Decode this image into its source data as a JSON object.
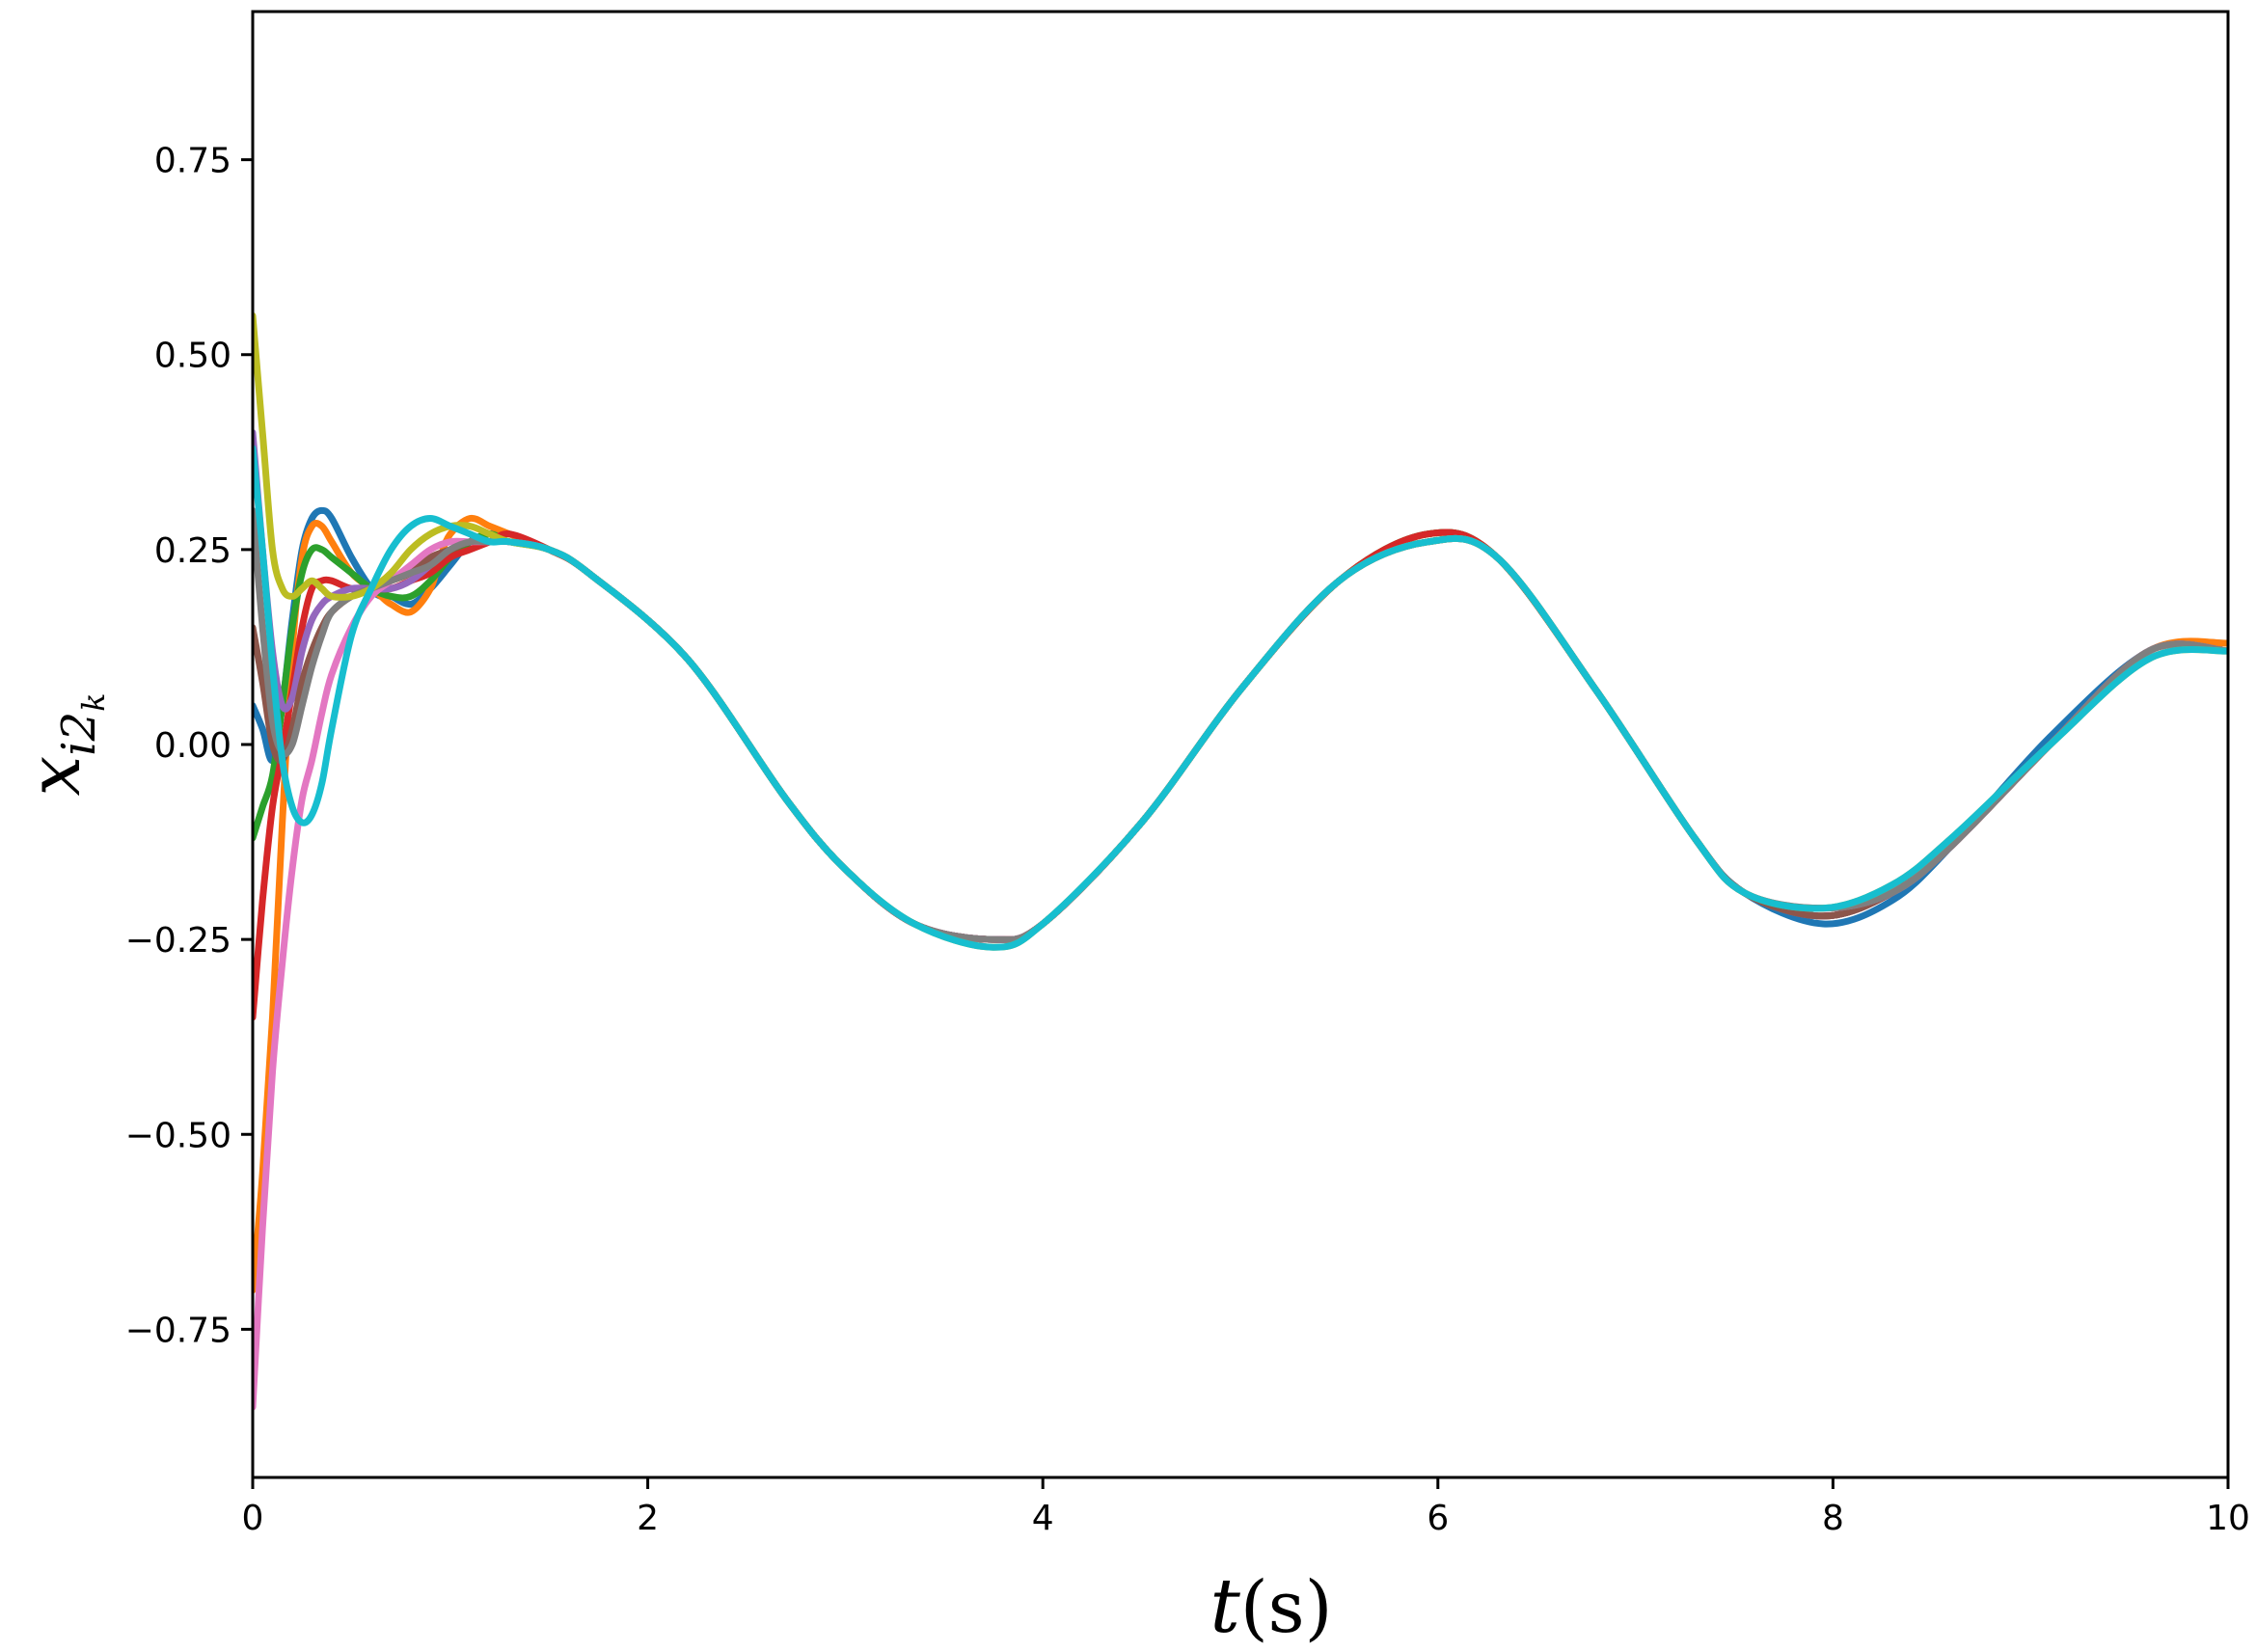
{
  "chart_data": {
    "type": "line",
    "title": "",
    "xlabel": {
      "var": "t",
      "unit": "(s)"
    },
    "ylabel": {
      "base": "x",
      "subscript": "i2",
      "subsubscript": "k"
    },
    "xlim": [
      0,
      10
    ],
    "ylim": [
      -0.94,
      0.94
    ],
    "x_ticks": [
      0,
      2,
      4,
      6,
      8,
      10
    ],
    "y_ticks": [
      -0.75,
      -0.5,
      -0.25,
      0.0,
      0.25,
      0.5,
      0.75
    ],
    "x_tick_labels": [
      "0",
      "2",
      "4",
      "6",
      "8",
      "10"
    ],
    "y_tick_labels": [
      "−0.75",
      "−0.50",
      "−0.25",
      "0.00",
      "0.25",
      "0.50",
      "0.75"
    ],
    "grid": false,
    "legend": "none",
    "colors": [
      "#1f77b4",
      "#ff7f0e",
      "#2ca02c",
      "#d62728",
      "#9467bd",
      "#8c564b",
      "#e377c2",
      "#7f7f7f",
      "#bcbd22",
      "#17becf"
    ],
    "series": [
      {
        "x": [
          0,
          0.05,
          0.1,
          0.15,
          0.2,
          0.25,
          0.3,
          0.35,
          0.4,
          0.5,
          0.6,
          0.65,
          0.7,
          0.8,
          0.9,
          1.0,
          1.1,
          1.2,
          1.3,
          1.5,
          1.7,
          2.2,
          2.7,
          3.0,
          3.35,
          3.75,
          4.0,
          4.5,
          5.0,
          5.5,
          5.95,
          6.3,
          6.8,
          7.3,
          7.55,
          7.95,
          8.3,
          8.6,
          9.1,
          9.6,
          10.0
        ],
        "y": [
          0.05,
          0.02,
          -0.02,
          0.05,
          0.16,
          0.25,
          0.29,
          0.3,
          0.29,
          0.24,
          0.2,
          0.19,
          0.19,
          0.18,
          0.2,
          0.23,
          0.26,
          0.27,
          0.27,
          0.25,
          0.22,
          0.11,
          -0.07,
          -0.16,
          -0.23,
          -0.25,
          -0.23,
          -0.1,
          0.07,
          0.21,
          0.27,
          0.24,
          0.07,
          -0.12,
          -0.19,
          -0.23,
          -0.2,
          -0.13,
          0.01,
          0.12,
          0.13
        ]
      },
      {
        "x": [
          0,
          0.05,
          0.1,
          0.15,
          0.2,
          0.25,
          0.3,
          0.35,
          0.4,
          0.5,
          0.6,
          0.65,
          0.7,
          0.8,
          0.9,
          0.95,
          1.0,
          1.1,
          1.2,
          1.3,
          1.5,
          1.7,
          2.2,
          2.7,
          3.0,
          3.35,
          3.75,
          4.0,
          4.5,
          5.0,
          5.5,
          5.95,
          6.3,
          6.8,
          7.3,
          7.55,
          7.95,
          8.3,
          8.6,
          9.1,
          9.6,
          10.0
        ],
        "y": [
          -0.7,
          -0.55,
          -0.35,
          -0.1,
          0.12,
          0.24,
          0.28,
          0.28,
          0.26,
          0.22,
          0.2,
          0.19,
          0.18,
          0.17,
          0.2,
          0.24,
          0.27,
          0.29,
          0.28,
          0.27,
          0.25,
          0.22,
          0.11,
          -0.07,
          -0.16,
          -0.23,
          -0.25,
          -0.23,
          -0.1,
          0.07,
          0.21,
          0.27,
          0.24,
          0.07,
          -0.12,
          -0.19,
          -0.22,
          -0.19,
          -0.13,
          0.0,
          0.12,
          0.13
        ]
      },
      {
        "x": [
          0,
          0.05,
          0.1,
          0.15,
          0.2,
          0.25,
          0.3,
          0.35,
          0.4,
          0.5,
          0.6,
          0.7,
          0.8,
          0.9,
          1.0,
          1.1,
          1.2,
          1.3,
          1.5,
          1.7,
          2.2,
          2.7,
          3.0,
          3.35,
          3.75,
          4.0,
          4.5,
          5.0,
          5.5,
          5.95,
          6.3,
          6.8,
          7.3,
          7.55,
          7.95,
          8.3,
          8.6,
          9.1,
          9.6,
          10.0
        ],
        "y": [
          -0.12,
          -0.08,
          -0.04,
          0.05,
          0.15,
          0.22,
          0.25,
          0.25,
          0.24,
          0.22,
          0.2,
          0.19,
          0.19,
          0.21,
          0.24,
          0.26,
          0.27,
          0.26,
          0.25,
          0.22,
          0.11,
          -0.07,
          -0.16,
          -0.23,
          -0.25,
          -0.23,
          -0.1,
          0.07,
          0.21,
          0.27,
          0.24,
          0.07,
          -0.12,
          -0.19,
          -0.22,
          -0.19,
          -0.13,
          0.0,
          0.12,
          0.12
        ]
      },
      {
        "x": [
          0,
          0.05,
          0.1,
          0.15,
          0.2,
          0.25,
          0.3,
          0.35,
          0.4,
          0.5,
          0.6,
          0.7,
          0.8,
          0.9,
          1.0,
          1.1,
          1.2,
          1.3,
          1.5,
          1.7,
          2.2,
          2.7,
          3.0,
          3.35,
          3.75,
          4.0,
          4.5,
          5.0,
          5.5,
          5.95,
          6.3,
          6.8,
          7.3,
          7.55,
          7.95,
          8.3,
          8.6,
          9.1,
          9.6,
          10.0
        ],
        "y": [
          -0.35,
          -0.2,
          -0.08,
          -0.01,
          0.07,
          0.15,
          0.2,
          0.21,
          0.21,
          0.2,
          0.2,
          0.2,
          0.21,
          0.22,
          0.24,
          0.25,
          0.26,
          0.27,
          0.25,
          0.22,
          0.11,
          -0.07,
          -0.16,
          -0.23,
          -0.25,
          -0.23,
          -0.1,
          0.07,
          0.21,
          0.27,
          0.24,
          0.07,
          -0.12,
          -0.19,
          -0.22,
          -0.19,
          -0.13,
          0.0,
          0.12,
          0.12
        ]
      },
      {
        "x": [
          0,
          0.05,
          0.1,
          0.15,
          0.2,
          0.25,
          0.3,
          0.35,
          0.4,
          0.5,
          0.6,
          0.7,
          0.8,
          0.9,
          1.0,
          1.1,
          1.2,
          1.3,
          1.5,
          1.7,
          2.2,
          2.7,
          3.0,
          3.35,
          3.75,
          4.0,
          4.5,
          5.0,
          5.5,
          5.95,
          6.3,
          6.8,
          7.3,
          7.55,
          7.95,
          8.3,
          8.6,
          9.1,
          9.6,
          10.0
        ],
        "y": [
          0.4,
          0.25,
          0.12,
          0.05,
          0.06,
          0.12,
          0.16,
          0.18,
          0.19,
          0.2,
          0.2,
          0.2,
          0.21,
          0.23,
          0.25,
          0.26,
          0.26,
          0.26,
          0.25,
          0.22,
          0.11,
          -0.07,
          -0.16,
          -0.23,
          -0.25,
          -0.23,
          -0.1,
          0.07,
          0.21,
          0.26,
          0.24,
          0.07,
          -0.12,
          -0.19,
          -0.22,
          -0.19,
          -0.13,
          0.0,
          0.12,
          0.12
        ]
      },
      {
        "x": [
          0,
          0.05,
          0.1,
          0.15,
          0.2,
          0.25,
          0.3,
          0.35,
          0.4,
          0.5,
          0.6,
          0.7,
          0.8,
          0.9,
          1.0,
          1.1,
          1.2,
          1.3,
          1.5,
          1.7,
          2.2,
          2.7,
          3.0,
          3.35,
          3.75,
          4.0,
          4.5,
          5.0,
          5.5,
          5.95,
          6.3,
          6.8,
          7.3,
          7.55,
          7.95,
          8.3,
          8.6,
          9.1,
          9.6,
          10.0
        ],
        "y": [
          0.15,
          0.08,
          0.0,
          -0.02,
          0.02,
          0.08,
          0.12,
          0.15,
          0.17,
          0.19,
          0.2,
          0.21,
          0.22,
          0.24,
          0.25,
          0.26,
          0.26,
          0.26,
          0.25,
          0.22,
          0.11,
          -0.07,
          -0.16,
          -0.23,
          -0.25,
          -0.23,
          -0.1,
          0.07,
          0.21,
          0.26,
          0.24,
          0.07,
          -0.12,
          -0.19,
          -0.22,
          -0.19,
          -0.13,
          0.0,
          0.12,
          0.12
        ]
      },
      {
        "x": [
          0,
          0.05,
          0.1,
          0.15,
          0.2,
          0.25,
          0.3,
          0.35,
          0.4,
          0.5,
          0.6,
          0.7,
          0.8,
          0.9,
          1.0,
          1.1,
          1.2,
          1.3,
          1.5,
          1.7,
          2.2,
          2.7,
          3.0,
          3.35,
          3.75,
          4.0,
          4.5,
          5.0,
          5.5,
          5.95,
          6.3,
          6.8,
          7.3,
          7.55,
          7.95,
          8.3,
          8.6,
          9.1,
          9.6,
          10.0
        ],
        "y": [
          -0.85,
          -0.62,
          -0.42,
          -0.28,
          -0.16,
          -0.07,
          -0.02,
          0.04,
          0.09,
          0.15,
          0.19,
          0.21,
          0.23,
          0.25,
          0.26,
          0.26,
          0.26,
          0.26,
          0.25,
          0.22,
          0.11,
          -0.07,
          -0.16,
          -0.23,
          -0.25,
          -0.23,
          -0.1,
          0.07,
          0.21,
          0.26,
          0.24,
          0.07,
          -0.12,
          -0.19,
          -0.21,
          -0.19,
          -0.13,
          0.0,
          0.12,
          0.12
        ]
      },
      {
        "x": [
          0,
          0.05,
          0.1,
          0.15,
          0.2,
          0.25,
          0.3,
          0.35,
          0.4,
          0.5,
          0.6,
          0.7,
          0.8,
          0.9,
          1.0,
          1.1,
          1.2,
          1.3,
          1.5,
          1.7,
          2.2,
          2.7,
          3.0,
          3.35,
          3.75,
          4.0,
          4.5,
          5.0,
          5.5,
          5.95,
          6.3,
          6.8,
          7.3,
          7.55,
          7.95,
          8.3,
          8.6,
          9.1,
          9.6,
          10.0
        ],
        "y": [
          0.3,
          0.15,
          0.03,
          -0.01,
          0.0,
          0.05,
          0.1,
          0.14,
          0.17,
          0.19,
          0.2,
          0.21,
          0.22,
          0.23,
          0.25,
          0.26,
          0.26,
          0.26,
          0.25,
          0.22,
          0.11,
          -0.07,
          -0.16,
          -0.23,
          -0.25,
          -0.23,
          -0.1,
          0.07,
          0.21,
          0.26,
          0.24,
          0.07,
          -0.12,
          -0.19,
          -0.21,
          -0.19,
          -0.13,
          0.0,
          0.12,
          0.12
        ]
      },
      {
        "x": [
          0,
          0.05,
          0.1,
          0.15,
          0.2,
          0.25,
          0.3,
          0.35,
          0.4,
          0.5,
          0.6,
          0.7,
          0.8,
          0.9,
          1.0,
          1.1,
          1.2,
          1.3,
          1.5,
          1.7,
          2.2,
          2.7,
          3.0,
          3.35,
          3.75,
          4.0,
          4.5,
          5.0,
          5.5,
          5.95,
          6.3,
          6.8,
          7.3,
          7.55,
          7.95,
          8.3,
          8.6,
          9.1,
          9.6,
          10.0
        ],
        "y": [
          0.55,
          0.4,
          0.25,
          0.2,
          0.19,
          0.2,
          0.21,
          0.2,
          0.19,
          0.19,
          0.2,
          0.22,
          0.25,
          0.27,
          0.28,
          0.28,
          0.27,
          0.26,
          0.25,
          0.22,
          0.11,
          -0.07,
          -0.16,
          -0.23,
          -0.26,
          -0.23,
          -0.1,
          0.07,
          0.21,
          0.26,
          0.24,
          0.07,
          -0.12,
          -0.19,
          -0.21,
          -0.18,
          -0.12,
          0.0,
          0.11,
          0.12
        ]
      },
      {
        "x": [
          0,
          0.05,
          0.1,
          0.15,
          0.2,
          0.25,
          0.3,
          0.35,
          0.4,
          0.5,
          0.6,
          0.7,
          0.8,
          0.9,
          1.0,
          1.1,
          1.2,
          1.3,
          1.5,
          1.7,
          2.2,
          2.7,
          3.0,
          3.35,
          3.75,
          4.0,
          4.5,
          5.0,
          5.5,
          5.95,
          6.3,
          6.8,
          7.3,
          7.55,
          7.95,
          8.3,
          8.6,
          9.1,
          9.6,
          10.0
        ],
        "y": [
          0.38,
          0.25,
          0.1,
          -0.02,
          -0.08,
          -0.1,
          -0.09,
          -0.05,
          0.02,
          0.14,
          0.2,
          0.25,
          0.28,
          0.29,
          0.28,
          0.27,
          0.26,
          0.26,
          0.25,
          0.22,
          0.11,
          -0.07,
          -0.16,
          -0.23,
          -0.26,
          -0.23,
          -0.1,
          0.07,
          0.21,
          0.26,
          0.24,
          0.07,
          -0.12,
          -0.19,
          -0.21,
          -0.18,
          -0.12,
          0.0,
          0.11,
          0.12
        ]
      }
    ]
  }
}
